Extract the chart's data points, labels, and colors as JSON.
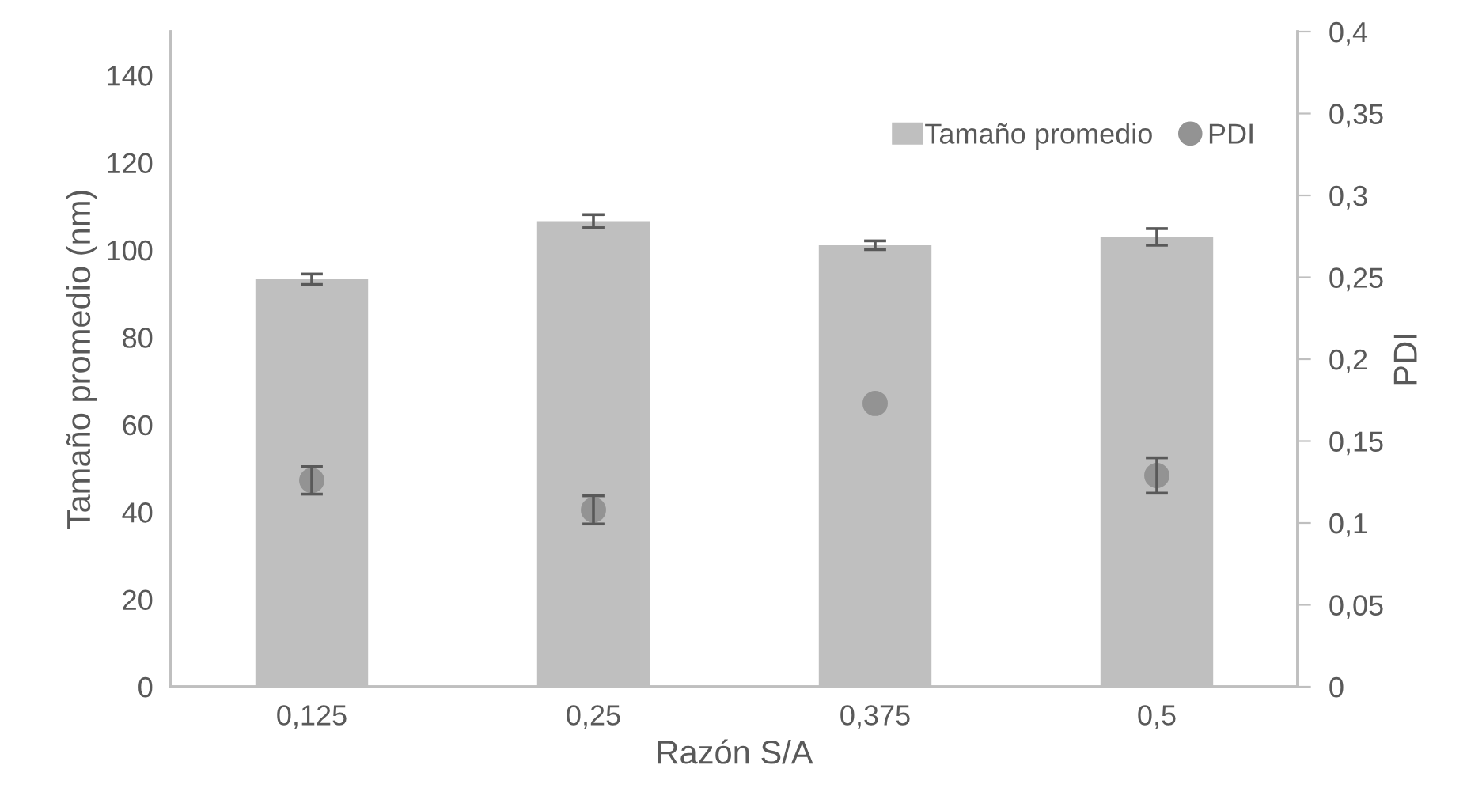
{
  "chart_data": {
    "type": "bar",
    "xlabel": "Razón S/A",
    "ylabel": "Tamaño promedio (nm)",
    "y2label": "PDI",
    "categories": [
      "0,125",
      "0,25",
      "0,375",
      "0,5"
    ],
    "series": [
      {
        "name": "Tamaño promedio",
        "color": "#bfbfbf",
        "values": [
          93.3,
          106.6,
          101.1,
          103.0
        ],
        "errors": [
          1.2,
          1.5,
          1.0,
          1.9
        ]
      },
      {
        "name": "PDI",
        "type": "scatter",
        "axis": "y2",
        "color": "#939393",
        "marker": "circle",
        "values": [
          0.126,
          0.108,
          0.173,
          0.129
        ],
        "errors": [
          0.0084,
          0.0086,
          null,
          0.0108
        ]
      }
    ],
    "ylim": [
      0,
      150
    ],
    "yticks": [
      0,
      20,
      40,
      60,
      80,
      100,
      120,
      140
    ],
    "y2lim": [
      0,
      0.4
    ],
    "y2ticks": [
      {
        "value": 0,
        "label": "0"
      },
      {
        "value": 0.05,
        "label": "0,05"
      },
      {
        "value": 0.1,
        "label": "0,1"
      },
      {
        "value": 0.15,
        "label": "0,15"
      },
      {
        "value": 0.2,
        "label": "0,2"
      },
      {
        "value": 0.25,
        "label": "0,25"
      },
      {
        "value": 0.3,
        "label": "0,3"
      },
      {
        "value": 0.35,
        "label": "0,35"
      },
      {
        "value": 0.4,
        "label": "0,4"
      }
    ],
    "legend": "top right",
    "grid": false
  }
}
